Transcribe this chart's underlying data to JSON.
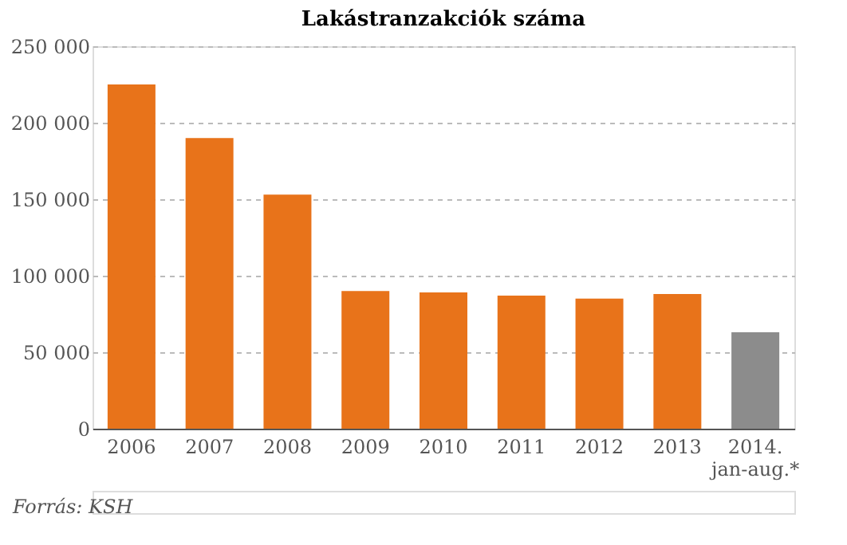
{
  "chart_data": {
    "type": "bar",
    "title": "Lakástranzakciók száma",
    "categories": [
      "2006",
      "2007",
      "2008",
      "2009",
      "2010",
      "2011",
      "2012",
      "2013",
      "2014. jan-aug.*"
    ],
    "values": [
      225000,
      190000,
      153000,
      90000,
      89000,
      87000,
      85000,
      88000,
      63000
    ],
    "colors": [
      "#e8731a",
      "#e8731a",
      "#e8731a",
      "#e8731a",
      "#e8731a",
      "#e8731a",
      "#e8731a",
      "#e8731a",
      "#8c8c8c"
    ],
    "ylim": [
      0,
      250000
    ],
    "yticks": [
      0,
      {
        "value": 50000,
        "label": "50 000"
      },
      {
        "value": 100000,
        "label": "100 000"
      },
      {
        "value": 150000,
        "label": "150 000"
      },
      {
        "value": 200000,
        "label": "200 000"
      },
      {
        "value": 250000,
        "label": "250 000"
      }
    ],
    "grid": "y",
    "annotations": [
      "Forrás: KSH"
    ]
  }
}
